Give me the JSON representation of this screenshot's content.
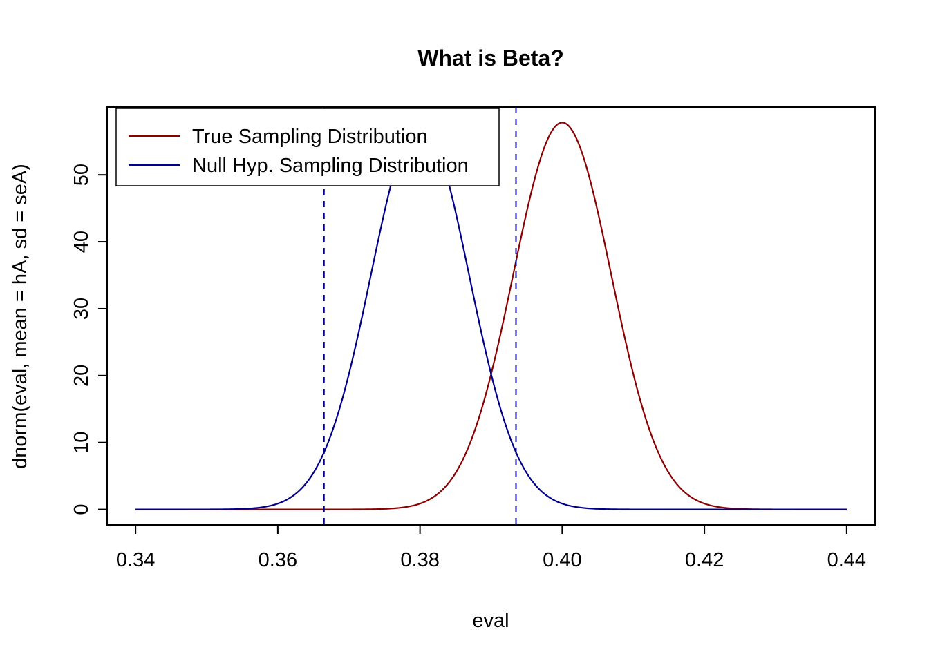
{
  "chart_data": {
    "type": "line",
    "title": "What is Beta?",
    "xlabel": "eval",
    "ylabel": "dnorm(eval, mean = hA, sd = seA)",
    "x_tick_labels": [
      "0.34",
      "0.36",
      "0.38",
      "0.40",
      "0.42",
      "0.44"
    ],
    "x_tick_values": [
      0.34,
      0.36,
      0.38,
      0.4,
      0.42,
      0.44
    ],
    "y_tick_labels": [
      "0",
      "10",
      "20",
      "30",
      "40",
      "50"
    ],
    "y_tick_values": [
      0,
      10,
      20,
      30,
      40,
      50
    ],
    "x_range_data": [
      0.34,
      0.44
    ],
    "y_max_data": 57.82,
    "axis_padding_frac": 0.04,
    "grid": "off",
    "series": [
      {
        "name": "True Sampling Distribution",
        "color": "#8B0000",
        "curve": "dnorm",
        "mean": 0.4,
        "sd": 0.0069,
        "peak": 57.82,
        "x_from": 0.34,
        "x_to": 0.44
      },
      {
        "name": "Null Hyp. Sampling Distribution",
        "color": "#00008B",
        "curve": "dnorm",
        "mean": 0.38,
        "sd": 0.0069,
        "peak": 57.82,
        "x_from": 0.34,
        "x_to": 0.44
      }
    ],
    "vlines": {
      "color": "#00008B",
      "style": "dashed",
      "values": [
        0.3665,
        0.3935
      ]
    },
    "legend": {
      "position": "topleft",
      "entries": [
        {
          "label": "True Sampling Distribution",
          "color": "#8B0000"
        },
        {
          "label": "Null Hyp. Sampling Distribution",
          "color": "#00008B"
        }
      ]
    }
  }
}
